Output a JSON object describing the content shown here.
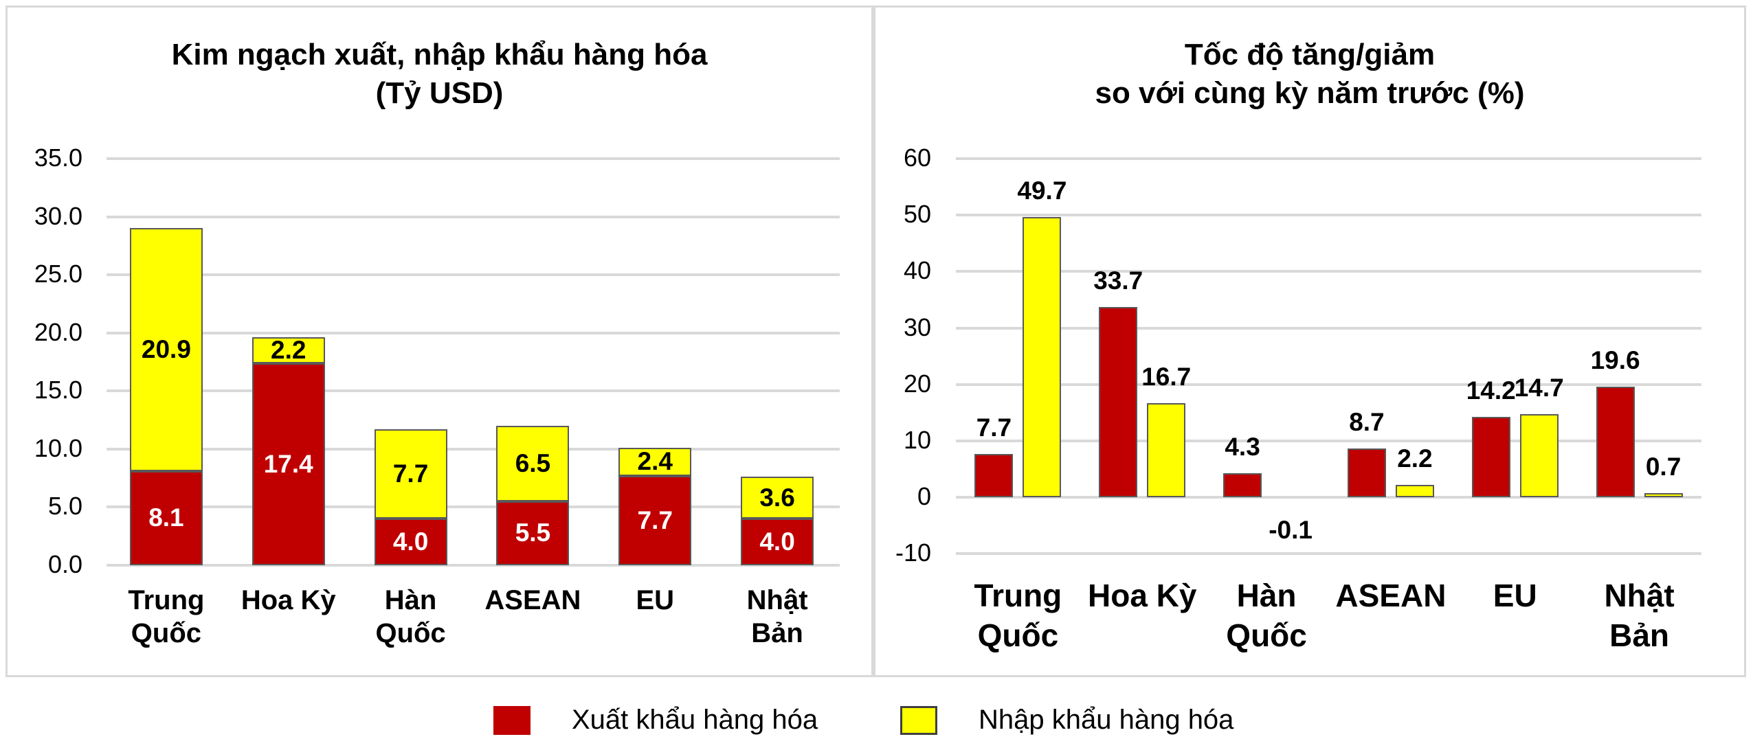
{
  "legend": [
    {
      "label": "Xuất khẩu hàng hóa",
      "color": "#c00000"
    },
    {
      "label": "Nhập khẩu hàng hóa",
      "color": "#ffff00"
    }
  ],
  "left": {
    "title": "Kim ngạch xuất, nhập khẩu hàng hóa\n(Tỷ USD)",
    "yticks": [
      "35.0",
      "30.0",
      "25.0",
      "20.0",
      "15.0",
      "10.0",
      "5.0",
      "0.0"
    ],
    "categories": [
      "Trung\nQuốc",
      "Hoa Kỳ",
      "Hàn\nQuốc",
      "ASEAN",
      "EU",
      "Nhật\nBản"
    ],
    "export_labels": [
      "8.1",
      "17.4",
      "4.0",
      "5.5",
      "7.7",
      "4.0"
    ],
    "import_labels": [
      "20.9",
      "2.2",
      "7.7",
      "6.5",
      "2.4",
      "3.6"
    ]
  },
  "right": {
    "title": "Tốc độ tăng/giảm\nso với cùng kỳ năm trước (%)",
    "yticks": [
      "60",
      "50",
      "40",
      "30",
      "20",
      "10",
      "0",
      "-10"
    ],
    "categories": [
      "Trung\nQuốc",
      "Hoa Kỳ",
      "Hàn\nQuốc",
      "ASEAN",
      "EU",
      "Nhật\nBản"
    ],
    "export_labels": [
      "7.7",
      "33.7",
      "4.3",
      "8.7",
      "14.2",
      "19.6"
    ],
    "import_labels": [
      "49.7",
      "16.7",
      "-0.1",
      "2.2",
      "14.7",
      "0.7"
    ]
  },
  "chart_data": [
    {
      "type": "bar",
      "stacked": true,
      "title": "Kim ngạch xuất, nhập khẩu hàng hóa (Tỷ USD)",
      "xlabel": "",
      "ylabel": "",
      "categories": [
        "Trung Quốc",
        "Hoa Kỳ",
        "Hàn Quốc",
        "ASEAN",
        "EU",
        "Nhật Bản"
      ],
      "series": [
        {
          "name": "Xuất khẩu hàng hóa",
          "color": "#c00000",
          "values": [
            8.1,
            17.4,
            4.0,
            5.5,
            7.7,
            4.0
          ]
        },
        {
          "name": "Nhập khẩu hàng hóa",
          "color": "#ffff00",
          "values": [
            20.9,
            2.2,
            7.7,
            6.5,
            2.4,
            3.6
          ]
        }
      ],
      "ylim": [
        0,
        35
      ],
      "yticks": [
        0,
        5,
        10,
        15,
        20,
        25,
        30,
        35
      ],
      "grid": true,
      "legend_position": "bottom"
    },
    {
      "type": "bar",
      "stacked": false,
      "title": "Tốc độ tăng/giảm so với cùng kỳ năm trước (%)",
      "xlabel": "",
      "ylabel": "",
      "categories": [
        "Trung Quốc",
        "Hoa Kỳ",
        "Hàn Quốc",
        "ASEAN",
        "EU",
        "Nhật Bản"
      ],
      "series": [
        {
          "name": "Xuất khẩu hàng hóa",
          "color": "#c00000",
          "values": [
            7.7,
            33.7,
            4.3,
            8.7,
            14.2,
            19.6
          ]
        },
        {
          "name": "Nhập khẩu hàng hóa",
          "color": "#ffff00",
          "values": [
            49.7,
            16.7,
            -0.1,
            2.2,
            14.7,
            0.7
          ]
        }
      ],
      "ylim": [
        -10,
        60
      ],
      "yticks": [
        -10,
        0,
        10,
        20,
        30,
        40,
        50,
        60
      ],
      "grid": true,
      "legend_position": "bottom"
    }
  ]
}
